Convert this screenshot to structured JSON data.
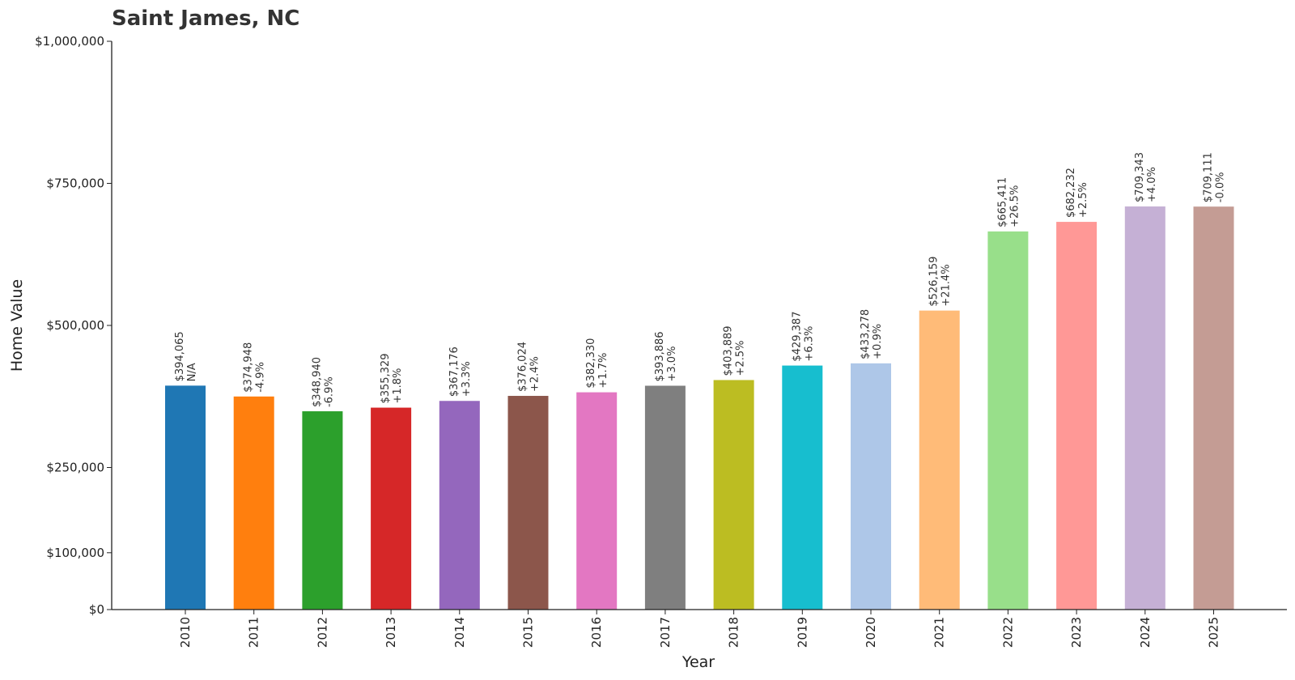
{
  "chart_data": {
    "type": "bar",
    "title": "Saint James, NC",
    "xlabel": "Year",
    "ylabel": "Home Value",
    "ylim": [
      0,
      1000000
    ],
    "y_ticks": [
      {
        "value": 0,
        "label": "$0"
      },
      {
        "value": 100000,
        "label": "$100,000"
      },
      {
        "value": 250000,
        "label": "$250,000"
      },
      {
        "value": 500000,
        "label": "$500,000"
      },
      {
        "value": 750000,
        "label": "$750,000"
      },
      {
        "value": 1000000,
        "label": "$1,000,000"
      }
    ],
    "grid": false,
    "categories": [
      "2010",
      "2011",
      "2012",
      "2013",
      "2014",
      "2015",
      "2016",
      "2017",
      "2018",
      "2019",
      "2020",
      "2021",
      "2022",
      "2023",
      "2024",
      "2025"
    ],
    "values": [
      394065,
      374948,
      348940,
      355329,
      367176,
      376024,
      382330,
      393886,
      403889,
      429387,
      433278,
      526159,
      665411,
      682232,
      709343,
      709111
    ],
    "value_labels": [
      "$394,065",
      "$374,948",
      "$348,940",
      "$355,329",
      "$367,176",
      "$376,024",
      "$382,330",
      "$393,886",
      "$403,889",
      "$429,387",
      "$433,278",
      "$526,159",
      "$665,411",
      "$682,232",
      "$709,343",
      "$709,111"
    ],
    "change_labels": [
      "N/A",
      "-4.9%",
      "-6.9%",
      "+1.8%",
      "+3.3%",
      "+2.4%",
      "+1.7%",
      "+3.0%",
      "+2.5%",
      "+6.3%",
      "+0.9%",
      "+21.4%",
      "+26.5%",
      "+2.5%",
      "+4.0%",
      "-0.0%"
    ],
    "colors": [
      "#1f77b4",
      "#ff7f0e",
      "#2ca02c",
      "#d62728",
      "#9467bd",
      "#8c564b",
      "#e377c2",
      "#7f7f7f",
      "#bcbd22",
      "#17becf",
      "#aec7e8",
      "#ffbb78",
      "#98df8a",
      "#ff9896",
      "#c5b0d5",
      "#c49c94"
    ]
  }
}
